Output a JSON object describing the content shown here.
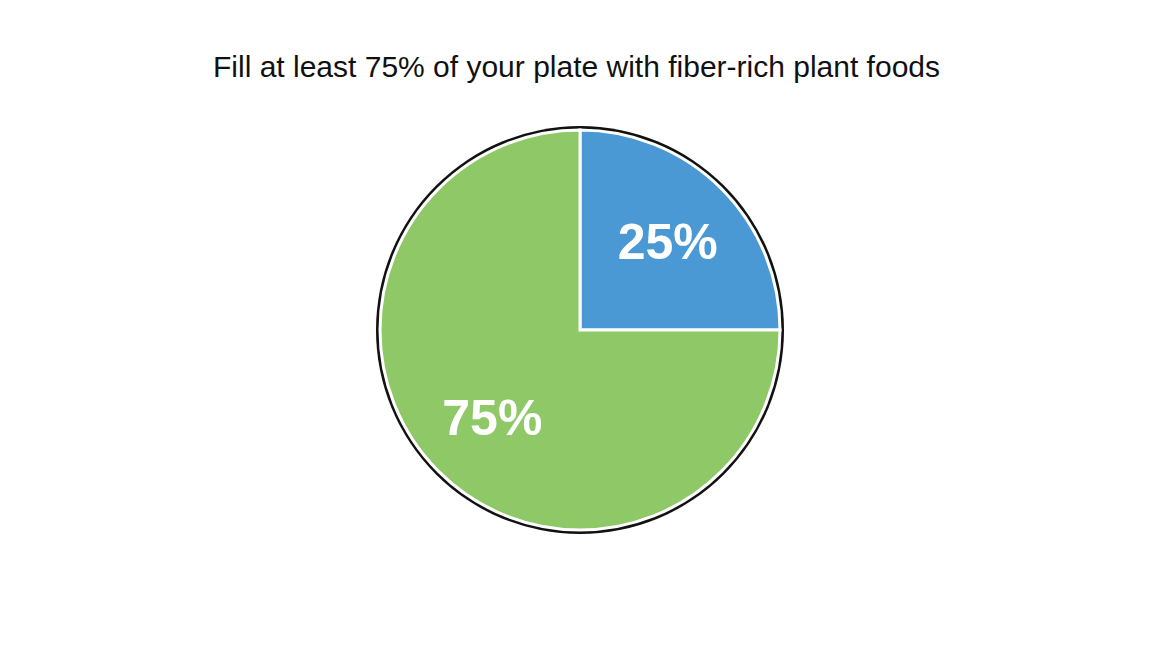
{
  "chart_data": {
    "type": "pie",
    "title": "Fill at least 75% of your plate with fiber-rich plant foods",
    "categories": [
      null,
      null
    ],
    "values": [
      25,
      75
    ],
    "value_labels": [
      "25%",
      "75%"
    ],
    "colors": [
      "#4a98d4",
      "#8fc866"
    ],
    "data_labels": true
  }
}
